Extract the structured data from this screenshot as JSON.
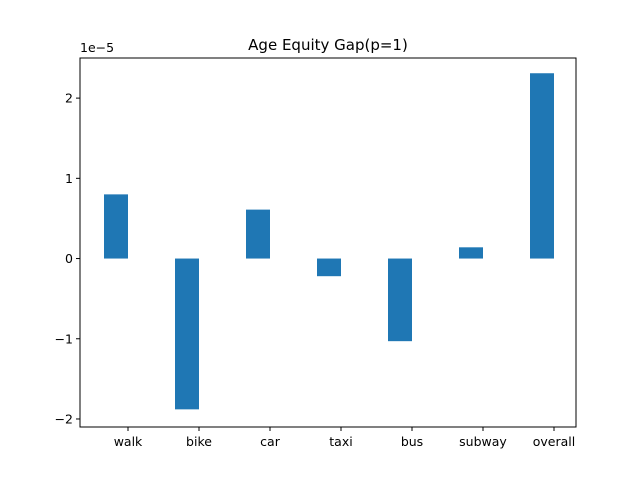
{
  "chart_data": {
    "type": "bar",
    "title": "Age Equity Gap(p=1)",
    "xlabel": "",
    "ylabel": "",
    "scale_label": "1e−5",
    "categories": [
      "walk",
      "bike",
      "car",
      "taxi",
      "bus",
      "subway",
      "overall"
    ],
    "values": [
      0.8,
      -1.88,
      0.61,
      -0.22,
      -1.03,
      0.14,
      2.31
    ],
    "value_multiplier": 1e-05,
    "ylim": [
      -2.1,
      2.5
    ],
    "yticks": [
      -2,
      -1,
      0,
      1,
      2
    ],
    "ytick_labels": [
      "−2",
      "−1",
      "0",
      "1",
      "2"
    ],
    "grid": false,
    "bar_color": "#1f77b4"
  }
}
